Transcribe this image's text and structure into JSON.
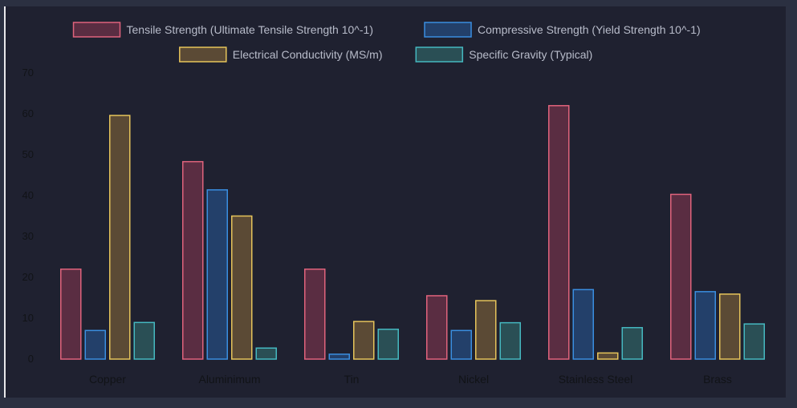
{
  "chart_data": {
    "type": "bar",
    "categories": [
      "Copper",
      "Aluminimum",
      "Tin",
      "Nickel",
      "Stainless Steel",
      "Brass"
    ],
    "series": [
      {
        "name": "Tensile Strength (Ultimate Tensile Strength 10^-1)",
        "values": [
          22,
          48.3,
          22,
          15.5,
          62,
          40.3
        ],
        "stroke": "#e0637c",
        "fill": "#5a2d42"
      },
      {
        "name": "Compressive Strength (Yield Strength 10^-1)",
        "values": [
          7,
          41.4,
          1.2,
          7,
          17,
          16.5
        ],
        "stroke": "#3a8ee0",
        "fill": "#23406a"
      },
      {
        "name": "Electrical Conductivity (MS/m)",
        "values": [
          59.6,
          35,
          9.2,
          14.3,
          1.5,
          15.9
        ],
        "stroke": "#e6c45a",
        "fill": "#5b4a35"
      },
      {
        "name": "Specific Gravity (Typical)",
        "values": [
          8.96,
          2.7,
          7.3,
          8.9,
          7.7,
          8.6
        ],
        "stroke": "#45b8c0",
        "fill": "#2a4f55"
      }
    ],
    "ylim": [
      0,
      70
    ],
    "yticks": [
      "0",
      "10",
      "20",
      "30",
      "40",
      "50",
      "60",
      "70"
    ],
    "legend_position": "top",
    "grid": false,
    "colors": {
      "background": "#1f2130",
      "tick_label": "#111317",
      "legend_text": "#b8bcca"
    }
  }
}
